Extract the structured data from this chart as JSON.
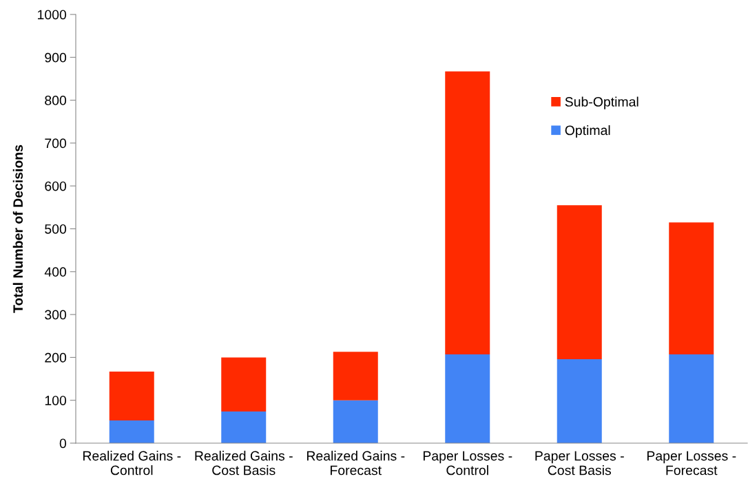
{
  "chart_data": {
    "type": "bar",
    "stacked": true,
    "ylabel": "Total Number of Decisions",
    "categories": [
      "Realized Gains - Control",
      "Realized Gains - Cost Basis",
      "Realized Gains - Forecast",
      "Paper Losses - Control",
      "Paper Losses - Cost Basis",
      "Paper Losses - Forecast"
    ],
    "series": [
      {
        "name": "Optimal",
        "color": "#4284f5",
        "values": [
          53,
          74,
          100,
          207,
          196,
          207
        ]
      },
      {
        "name": "Sub-Optimal",
        "color": "#ff2a00",
        "values": [
          114,
          126,
          113,
          660,
          359,
          308
        ]
      }
    ],
    "ylim": [
      0,
      1000
    ],
    "yticks": [
      0,
      100,
      200,
      300,
      400,
      500,
      600,
      700,
      800,
      900,
      1000
    ],
    "grid": false,
    "legend": "top right"
  }
}
